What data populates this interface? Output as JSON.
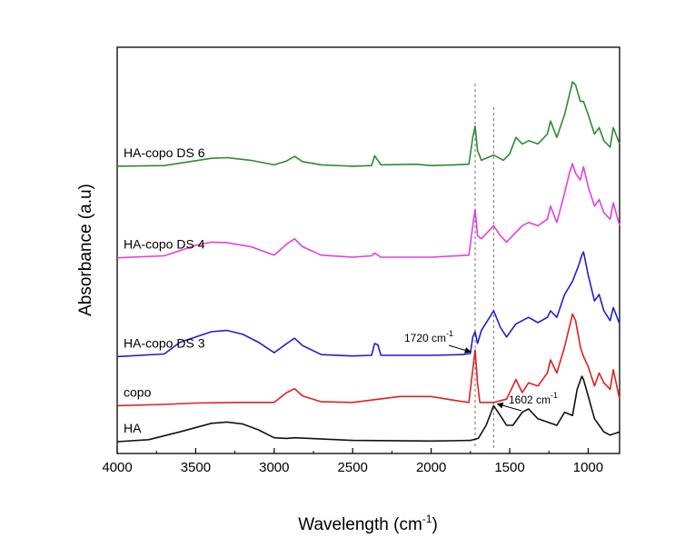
{
  "chart_data": {
    "type": "line",
    "title": "",
    "xlabel": "Wavelength (cm",
    "xlabel_sup": "-1",
    "xlabel_close": ")",
    "ylabel": "Absorbance (a.u)",
    "xlim": [
      4000,
      800
    ],
    "x_reversed": true,
    "x_ticks": [
      4000,
      3500,
      3000,
      2500,
      2000,
      1500,
      1000
    ],
    "y_ticks": "none",
    "grid": false,
    "legend": "inline labels",
    "reference_lines": [
      {
        "x": 1720,
        "style": "dashed",
        "color": "#888888"
      },
      {
        "x": 1602,
        "style": "dashed",
        "color": "#888888"
      }
    ],
    "annotations": [
      {
        "text": "1720 cm",
        "sup": "-1",
        "points_to": 1720,
        "series": "copo"
      },
      {
        "text": "1602 cm",
        "sup": "-1",
        "points_to": 1602,
        "series": "HA"
      }
    ],
    "series": [
      {
        "name": "HA-copo DS 6",
        "color": "#2e8b2e",
        "offset": 4.2,
        "points": [
          [
            4000,
            0.01
          ],
          [
            3700,
            0.02
          ],
          [
            3400,
            0.13
          ],
          [
            3300,
            0.14
          ],
          [
            3150,
            0.1
          ],
          [
            3000,
            0.03
          ],
          [
            2920,
            0.09
          ],
          [
            2870,
            0.16
          ],
          [
            2820,
            0.08
          ],
          [
            2700,
            0.03
          ],
          [
            2500,
            0.01
          ],
          [
            2380,
            0.02
          ],
          [
            2360,
            0.17
          ],
          [
            2340,
            0.1
          ],
          [
            2320,
            0.03
          ],
          [
            2100,
            0.04
          ],
          [
            2000,
            0.02
          ],
          [
            1850,
            0.03
          ],
          [
            1760,
            0.04
          ],
          [
            1735,
            0.45
          ],
          [
            1720,
            0.62
          ],
          [
            1705,
            0.25
          ],
          [
            1680,
            0.1
          ],
          [
            1602,
            0.18
          ],
          [
            1540,
            0.1
          ],
          [
            1500,
            0.2
          ],
          [
            1460,
            0.45
          ],
          [
            1420,
            0.35
          ],
          [
            1380,
            0.4
          ],
          [
            1320,
            0.35
          ],
          [
            1260,
            0.5
          ],
          [
            1240,
            0.7
          ],
          [
            1200,
            0.45
          ],
          [
            1150,
            0.8
          ],
          [
            1120,
            1.1
          ],
          [
            1100,
            1.3
          ],
          [
            1080,
            1.25
          ],
          [
            1050,
            1.0
          ],
          [
            1030,
            1.0
          ],
          [
            1000,
            0.8
          ],
          [
            960,
            0.5
          ],
          [
            930,
            0.6
          ],
          [
            900,
            0.4
          ],
          [
            860,
            0.3
          ],
          [
            840,
            0.6
          ],
          [
            800,
            0.35
          ]
        ]
      },
      {
        "name": "HA-copo DS 4",
        "color": "#e040e0",
        "offset": 2.8,
        "points": [
          [
            4000,
            0.01
          ],
          [
            3700,
            0.04
          ],
          [
            3500,
            0.2
          ],
          [
            3400,
            0.25
          ],
          [
            3300,
            0.24
          ],
          [
            3150,
            0.18
          ],
          [
            3000,
            0.05
          ],
          [
            2920,
            0.22
          ],
          [
            2870,
            0.3
          ],
          [
            2820,
            0.18
          ],
          [
            2700,
            0.05
          ],
          [
            2500,
            0.02
          ],
          [
            2380,
            0.04
          ],
          [
            2360,
            0.08
          ],
          [
            2320,
            0.02
          ],
          [
            2000,
            0.02
          ],
          [
            1760,
            0.05
          ],
          [
            1735,
            0.5
          ],
          [
            1720,
            0.75
          ],
          [
            1705,
            0.35
          ],
          [
            1680,
            0.3
          ],
          [
            1602,
            0.5
          ],
          [
            1560,
            0.35
          ],
          [
            1520,
            0.25
          ],
          [
            1460,
            0.4
          ],
          [
            1420,
            0.5
          ],
          [
            1380,
            0.55
          ],
          [
            1320,
            0.5
          ],
          [
            1260,
            0.6
          ],
          [
            1240,
            0.8
          ],
          [
            1200,
            0.55
          ],
          [
            1150,
            1.0
          ],
          [
            1120,
            1.3
          ],
          [
            1100,
            1.45
          ],
          [
            1080,
            1.3
          ],
          [
            1050,
            1.2
          ],
          [
            1030,
            1.4
          ],
          [
            1000,
            1.1
          ],
          [
            960,
            0.8
          ],
          [
            930,
            0.9
          ],
          [
            900,
            0.7
          ],
          [
            860,
            0.6
          ],
          [
            840,
            0.85
          ],
          [
            800,
            0.5
          ]
        ]
      },
      {
        "name": "HA-copo DS 3",
        "color": "#1f1fd0",
        "offset": 1.3,
        "points": [
          [
            4000,
            0.0
          ],
          [
            3700,
            0.04
          ],
          [
            3600,
            0.22
          ],
          [
            3400,
            0.38
          ],
          [
            3300,
            0.4
          ],
          [
            3200,
            0.34
          ],
          [
            3100,
            0.22
          ],
          [
            3000,
            0.06
          ],
          [
            2920,
            0.2
          ],
          [
            2870,
            0.28
          ],
          [
            2820,
            0.17
          ],
          [
            2700,
            0.03
          ],
          [
            2500,
            0.01
          ],
          [
            2380,
            0.02
          ],
          [
            2360,
            0.2
          ],
          [
            2340,
            0.18
          ],
          [
            2320,
            0.02
          ],
          [
            2000,
            0.02
          ],
          [
            1800,
            0.03
          ],
          [
            1750,
            0.05
          ],
          [
            1735,
            0.3
          ],
          [
            1720,
            0.38
          ],
          [
            1705,
            0.2
          ],
          [
            1680,
            0.4
          ],
          [
            1602,
            0.7
          ],
          [
            1560,
            0.45
          ],
          [
            1520,
            0.3
          ],
          [
            1460,
            0.5
          ],
          [
            1420,
            0.55
          ],
          [
            1380,
            0.6
          ],
          [
            1320,
            0.52
          ],
          [
            1260,
            0.6
          ],
          [
            1240,
            0.7
          ],
          [
            1200,
            0.6
          ],
          [
            1150,
            0.95
          ],
          [
            1100,
            1.15
          ],
          [
            1060,
            1.4
          ],
          [
            1040,
            1.55
          ],
          [
            1030,
            1.6
          ],
          [
            1000,
            1.25
          ],
          [
            960,
            0.85
          ],
          [
            930,
            0.95
          ],
          [
            900,
            0.7
          ],
          [
            860,
            0.55
          ],
          [
            840,
            0.75
          ],
          [
            800,
            0.5
          ]
        ]
      },
      {
        "name": "copo",
        "color": "#e02020",
        "offset": 0.55,
        "points": [
          [
            4000,
            0.0
          ],
          [
            3700,
            0.02
          ],
          [
            3500,
            0.04
          ],
          [
            3200,
            0.05
          ],
          [
            3000,
            0.05
          ],
          [
            2920,
            0.2
          ],
          [
            2870,
            0.26
          ],
          [
            2820,
            0.15
          ],
          [
            2700,
            0.06
          ],
          [
            2500,
            0.05
          ],
          [
            2200,
            0.14
          ],
          [
            2000,
            0.14
          ],
          [
            1850,
            0.08
          ],
          [
            1760,
            0.05
          ],
          [
            1735,
            0.55
          ],
          [
            1720,
            0.85
          ],
          [
            1705,
            0.35
          ],
          [
            1690,
            0.05
          ],
          [
            1602,
            0.05
          ],
          [
            1520,
            0.1
          ],
          [
            1460,
            0.4
          ],
          [
            1420,
            0.2
          ],
          [
            1380,
            0.35
          ],
          [
            1320,
            0.3
          ],
          [
            1260,
            0.5
          ],
          [
            1240,
            0.7
          ],
          [
            1200,
            0.5
          ],
          [
            1150,
            0.9
          ],
          [
            1120,
            1.2
          ],
          [
            1100,
            1.4
          ],
          [
            1080,
            1.3
          ],
          [
            1050,
            0.9
          ],
          [
            1030,
            0.75
          ],
          [
            1000,
            0.6
          ],
          [
            960,
            0.3
          ],
          [
            930,
            0.5
          ],
          [
            900,
            0.35
          ],
          [
            860,
            0.25
          ],
          [
            840,
            0.55
          ],
          [
            800,
            0.1
          ]
        ]
      },
      {
        "name": "HA",
        "color": "#111111",
        "offset": 0,
        "points": [
          [
            4000,
            0.0
          ],
          [
            3800,
            0.03
          ],
          [
            3600,
            0.15
          ],
          [
            3400,
            0.28
          ],
          [
            3300,
            0.3
          ],
          [
            3200,
            0.27
          ],
          [
            3100,
            0.18
          ],
          [
            3000,
            0.06
          ],
          [
            2920,
            0.05
          ],
          [
            2870,
            0.06
          ],
          [
            2500,
            0.02
          ],
          [
            2000,
            0.01
          ],
          [
            1750,
            0.02
          ],
          [
            1700,
            0.05
          ],
          [
            1650,
            0.25
          ],
          [
            1602,
            0.55
          ],
          [
            1560,
            0.4
          ],
          [
            1520,
            0.25
          ],
          [
            1480,
            0.25
          ],
          [
            1420,
            0.45
          ],
          [
            1380,
            0.5
          ],
          [
            1320,
            0.35
          ],
          [
            1260,
            0.3
          ],
          [
            1200,
            0.25
          ],
          [
            1150,
            0.45
          ],
          [
            1100,
            0.4
          ],
          [
            1070,
            0.8
          ],
          [
            1040,
            1.0
          ],
          [
            1030,
            0.95
          ],
          [
            1000,
            0.7
          ],
          [
            960,
            0.35
          ],
          [
            930,
            0.25
          ],
          [
            900,
            0.15
          ],
          [
            860,
            0.1
          ],
          [
            800,
            0.15
          ]
        ]
      }
    ]
  }
}
